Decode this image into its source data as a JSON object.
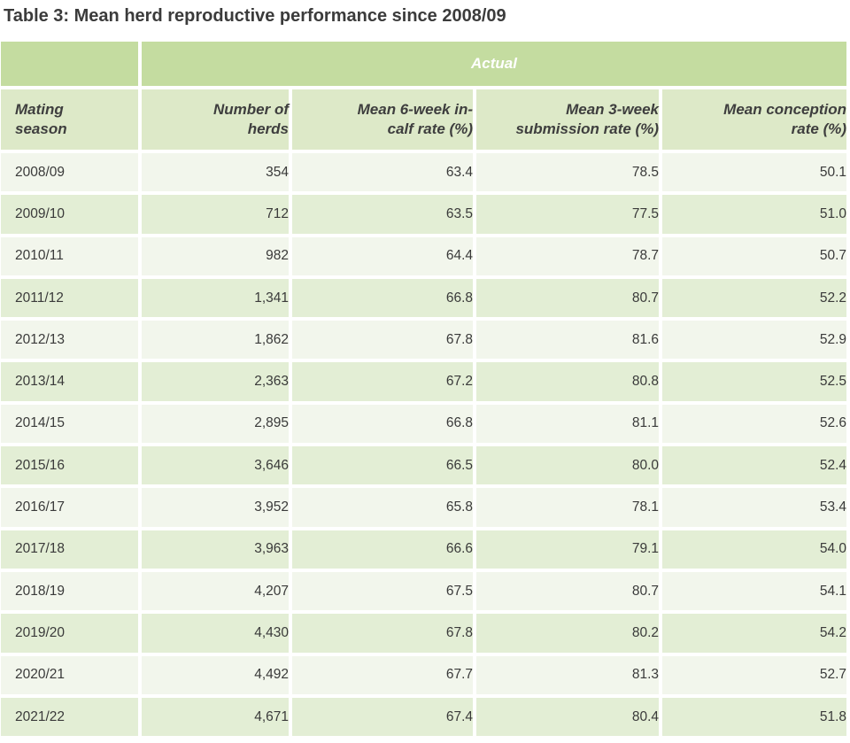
{
  "title": "Table 3: Mean herd reproductive performance since 2008/09",
  "group_header": "Actual",
  "columns": [
    {
      "line1": "Mating",
      "line2": "season"
    },
    {
      "line1": "Number of",
      "line2": "herds"
    },
    {
      "line1": "Mean 6-week in-",
      "line2": "calf rate (%)"
    },
    {
      "line1": "Mean 3-week",
      "line2": "submission rate (%)"
    },
    {
      "line1": "Mean conception",
      "line2": "rate (%)"
    }
  ],
  "rows": [
    [
      "2008/09",
      "354",
      "63.4",
      "78.5",
      "50.1"
    ],
    [
      "2009/10",
      "712",
      "63.5",
      "77.5",
      "51.0"
    ],
    [
      "2010/11",
      "982",
      "64.4",
      "78.7",
      "50.7"
    ],
    [
      "2011/12",
      "1,341",
      "66.8",
      "80.7",
      "52.2"
    ],
    [
      "2012/13",
      "1,862",
      "67.8",
      "81.6",
      "52.9"
    ],
    [
      "2013/14",
      "2,363",
      "67.2",
      "80.8",
      "52.5"
    ],
    [
      "2014/15",
      "2,895",
      "66.8",
      "81.1",
      "52.6"
    ],
    [
      "2015/16",
      "3,646",
      "66.5",
      "80.0",
      "52.4"
    ],
    [
      "2016/17",
      "3,952",
      "65.8",
      "78.1",
      "53.4"
    ],
    [
      "2017/18",
      "3,963",
      "66.6",
      "79.1",
      "54.0"
    ],
    [
      "2018/19",
      "4,207",
      "67.5",
      "80.7",
      "54.1"
    ],
    [
      "2019/20",
      "4,430",
      "67.8",
      "80.2",
      "54.2"
    ],
    [
      "2020/21",
      "4,492",
      "67.7",
      "81.3",
      "52.7"
    ],
    [
      "2021/22",
      "4,671",
      "67.4",
      "80.4",
      "51.8"
    ]
  ],
  "colors": {
    "header_dark": "#c4dca0",
    "header_light": "#dde9c8",
    "row_odd": "#f2f6ec",
    "row_even": "#e3eed5"
  }
}
